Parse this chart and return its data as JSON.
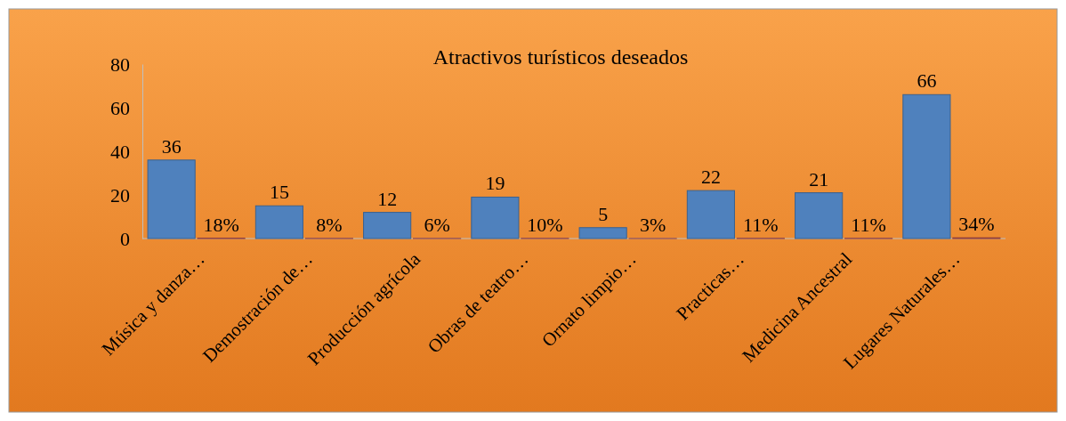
{
  "chart_data": {
    "type": "bar",
    "title": "Atractivos  turísticos deseados",
    "categories": [
      "Música y danza…",
      "Demostración de…",
      "Producción agrícola",
      "Obras de teatro…",
      "Ornato limpio…",
      "Practicas…",
      "Medicina Ancestral",
      "Lugares Naturales…"
    ],
    "series": [
      {
        "color": "#4f81bd",
        "values": [
          36,
          15,
          12,
          19,
          5,
          22,
          21,
          66
        ],
        "value_labels": [
          "36",
          "15",
          "12",
          "19",
          "5",
          "22",
          "21",
          "66"
        ]
      },
      {
        "color": "#c0504d",
        "values": [
          0.18,
          0.08,
          0.06,
          0.1,
          0.03,
          0.11,
          0.11,
          0.34
        ],
        "value_labels": [
          "18%",
          "8%",
          "6%",
          "10%",
          "3%",
          "11%",
          "11%",
          "34%"
        ]
      }
    ],
    "ylim": [
      0,
      80
    ],
    "yticks": [
      0,
      20,
      40,
      60,
      80
    ]
  }
}
